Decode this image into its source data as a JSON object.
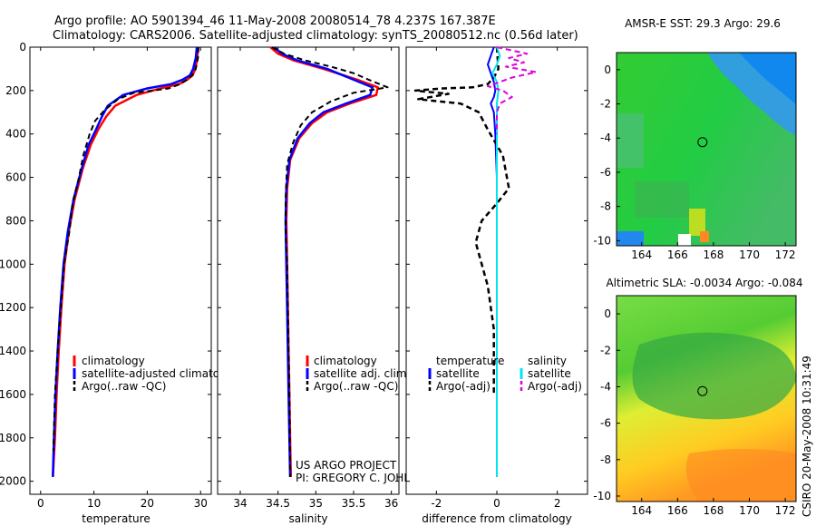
{
  "title_line1": "Argo profile: AO 5901394_46 11-May-2008 20080514_78 4.237S 167.387E",
  "title_line2": "Climatology: CARS2006. Satellite-adjusted climatology: synTS_20080512.nc (0.56d later)",
  "credit_line1": "US ARGO PROJECT",
  "credit_line2": "PI: GREGORY C. JOHNSON",
  "side_stamp": "CSIRO 20-May-2008 10:31:49",
  "colors": {
    "climatology": "#ff0000",
    "satellite": "#0000ff",
    "argo": "#000000",
    "sal_satellite": "#00e5ee",
    "sal_argo": "#dd00dd"
  },
  "chart_data": [
    {
      "type": "line",
      "xlabel": "temperature",
      "xticks": [
        "0",
        "10",
        "20",
        "30"
      ],
      "yticks": [
        "0",
        "200",
        "400",
        "600",
        "800",
        "1000",
        "1200",
        "1400",
        "1600",
        "1800",
        "2000"
      ],
      "xlim": [
        -2,
        32
      ],
      "ylim": [
        2060,
        0
      ],
      "legend": [
        "climatology",
        "satellite-adjusted climatology",
        "Argo(..raw -QC)"
      ],
      "series": [
        {
          "name": "climatology",
          "x": [
            29.5,
            29.4,
            29.0,
            28.5,
            27.5,
            26.0,
            22.5,
            18.0,
            14.0,
            12.3,
            10.8,
            9.4,
            7.9,
            6.4,
            5.3,
            4.5,
            3.9,
            3.4,
            3.0,
            2.7,
            2.3
          ],
          "y": [
            0,
            50,
            100,
            130,
            150,
            170,
            190,
            220,
            270,
            320,
            380,
            450,
            560,
            700,
            850,
            1000,
            1200,
            1400,
            1600,
            1800,
            1980
          ]
        },
        {
          "name": "satellite",
          "x": [
            29.3,
            29.1,
            28.6,
            28.0,
            26.6,
            24.5,
            20.0,
            15.5,
            12.6,
            11.5,
            10.4,
            9.0,
            7.7,
            6.2,
            5.1,
            4.3,
            3.7,
            3.2,
            2.8,
            2.5,
            2.3
          ],
          "y": [
            0,
            50,
            100,
            130,
            150,
            170,
            190,
            220,
            270,
            320,
            380,
            450,
            560,
            700,
            850,
            1000,
            1200,
            1400,
            1600,
            1800,
            1980
          ]
        },
        {
          "name": "Argo",
          "x": [
            29.6,
            29.5,
            29.1,
            28.4,
            27.4,
            26.2,
            24.0,
            21.0,
            17.5,
            14.5,
            12.0,
            10.2,
            9.2,
            8.0,
            7.2,
            6.0,
            5.4,
            4.4,
            3.8,
            3.2,
            2.7,
            2.4
          ],
          "y": [
            0,
            50,
            100,
            130,
            150,
            170,
            190,
            200,
            210,
            240,
            290,
            340,
            400,
            500,
            600,
            720,
            850,
            1000,
            1200,
            1400,
            1600,
            1860
          ]
        }
      ]
    },
    {
      "type": "line",
      "xlabel": "salinity",
      "xticks": [
        "34",
        "34.5",
        "35",
        "35.5",
        "36"
      ],
      "xlim": [
        33.7,
        36.1
      ],
      "ylim": [
        2060,
        0
      ],
      "legend": [
        "climatology",
        "satellite adj. clim.",
        "Argo(..raw -QC)"
      ],
      "series": [
        {
          "name": "climatology",
          "x": [
            34.4,
            34.5,
            34.7,
            35.1,
            35.55,
            35.82,
            35.8,
            35.45,
            35.15,
            34.95,
            34.78,
            34.66,
            34.62,
            34.61,
            34.62,
            34.63,
            34.64,
            34.65,
            34.66,
            34.67
          ],
          "y": [
            0,
            30,
            60,
            100,
            150,
            185,
            220,
            260,
            300,
            350,
            420,
            520,
            650,
            800,
            1000,
            1200,
            1400,
            1600,
            1800,
            1980
          ]
        },
        {
          "name": "satellite",
          "x": [
            34.45,
            34.55,
            34.75,
            35.15,
            35.5,
            35.75,
            35.72,
            35.4,
            35.1,
            34.92,
            34.76,
            34.65,
            34.61,
            34.6,
            34.61,
            34.62,
            34.63,
            34.64,
            34.65,
            34.66
          ],
          "y": [
            0,
            30,
            60,
            100,
            150,
            185,
            220,
            260,
            300,
            350,
            420,
            520,
            650,
            800,
            1000,
            1200,
            1400,
            1600,
            1800,
            1980
          ]
        },
        {
          "name": "Argo",
          "x": [
            34.42,
            34.58,
            34.85,
            35.2,
            35.5,
            35.7,
            35.95,
            35.5,
            35.2,
            34.95,
            34.8,
            34.7,
            34.62,
            34.6,
            34.6,
            34.62,
            34.63,
            34.64,
            34.65,
            34.66
          ],
          "y": [
            0,
            30,
            60,
            90,
            120,
            150,
            185,
            210,
            250,
            300,
            360,
            440,
            540,
            700,
            850,
            1000,
            1200,
            1400,
            1600,
            1980
          ]
        }
      ]
    },
    {
      "type": "line",
      "xlabel": "difference from climatology",
      "xticks": [
        "-2",
        "0",
        "2"
      ],
      "xlim": [
        -3,
        3
      ],
      "ylim": [
        2060,
        0
      ],
      "legend_left_title": "temperature",
      "legend_right_title": "salinity",
      "legend_left": [
        "satellite",
        "Argo(-adj)"
      ],
      "legend_right": [
        "satellite",
        "Argo(-adj)"
      ],
      "series": [
        {
          "name": "temperature satellite",
          "x": [
            -0.1,
            -0.2,
            -0.3,
            -0.2,
            -0.1,
            -0.05,
            -0.1,
            -0.2,
            -0.1,
            -0.05,
            0.0,
            0.0,
            0.0,
            0.0
          ],
          "y": [
            0,
            40,
            80,
            120,
            160,
            200,
            230,
            260,
            300,
            400,
            600,
            1000,
            1400,
            1980
          ]
        },
        {
          "name": "temperature Argo(-adj)",
          "x": [
            0.0,
            0.05,
            -0.1,
            -0.3,
            -0.8,
            -1.8,
            -2.7,
            -1.6,
            -2.6,
            -1.2,
            -0.6,
            -0.3,
            0.2,
            0.4,
            0.0,
            -0.5,
            -0.7,
            -0.3,
            -0.1,
            -0.1
          ],
          "y": [
            0,
            100,
            140,
            170,
            185,
            190,
            200,
            215,
            240,
            260,
            300,
            380,
            500,
            650,
            720,
            800,
            900,
            1100,
            1300,
            1600
          ]
        },
        {
          "name": "salinity satellite",
          "x": [
            0.0,
            0.1,
            0.0,
            -0.15,
            0.0,
            0.05,
            0.0,
            0.0,
            0.0,
            0.0
          ],
          "y": [
            0,
            40,
            80,
            120,
            160,
            200,
            260,
            400,
            1000,
            1980
          ]
        },
        {
          "name": "salinity Argo(-adj)",
          "x": [
            0.0,
            0.5,
            1.0,
            0.4,
            0.9,
            0.3,
            1.3,
            0.5,
            0.1,
            -0.3,
            0.2,
            0.5,
            0.1,
            0.0,
            0.0
          ],
          "y": [
            0,
            15,
            30,
            50,
            70,
            90,
            115,
            140,
            160,
            180,
            200,
            230,
            260,
            300,
            400
          ]
        }
      ]
    },
    {
      "type": "heatmap",
      "title": "AMSR-E SST: 29.3 Argo: 29.6",
      "xticks": [
        "164",
        "166",
        "168",
        "170",
        "172"
      ],
      "yticks": [
        "0",
        "-2",
        "-4",
        "-6",
        "-8",
        "-10"
      ],
      "xlim": [
        162.6,
        172.6
      ],
      "ylim": [
        -10.3,
        1.0
      ],
      "marker": {
        "lon": 167.387,
        "lat": -4.237
      }
    },
    {
      "type": "heatmap",
      "title": "Altimetric SLA: -0.0034 Argo: -0.084",
      "xticks": [
        "164",
        "166",
        "168",
        "170",
        "172"
      ],
      "yticks": [
        "0",
        "-2",
        "-4",
        "-6",
        "-8",
        "-10"
      ],
      "xlim": [
        162.6,
        172.6
      ],
      "ylim": [
        -10.3,
        1.0
      ],
      "marker": {
        "lon": 167.387,
        "lat": -4.237
      }
    }
  ]
}
